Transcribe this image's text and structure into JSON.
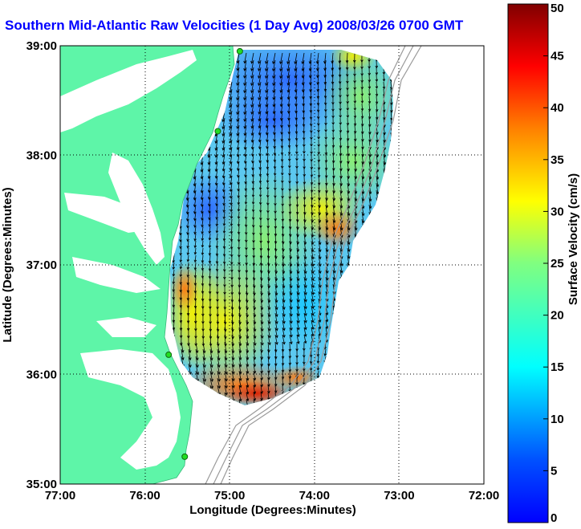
{
  "title": "Southern Mid-Atlantic Raw Velocities (1 Day Avg) 2008/03/26 0700 GMT",
  "map": {
    "xlabel": "Longitude (Degrees:Minutes)",
    "ylabel": "Latitude (Degrees:Minutes)",
    "x_ticks": [
      "77:00",
      "76:00",
      "75:00",
      "74:00",
      "73:00",
      "72:00"
    ],
    "y_ticks": [
      "39:00",
      "38:00",
      "37:00",
      "36:00",
      "35:00"
    ],
    "lon_range": [
      -77,
      -72
    ],
    "lat_range": [
      35,
      39
    ],
    "land_color": "#5ef5a8",
    "water_color": "#ffffff",
    "grid": true
  },
  "colorbar": {
    "label": "Surface Velocity (cm/s)",
    "ticks": [
      "0",
      "5",
      "10",
      "15",
      "20",
      "25",
      "30",
      "35",
      "40",
      "45",
      "50"
    ],
    "range": [
      0,
      50
    ],
    "colormap": "jet"
  },
  "stations": [
    {
      "lon": -74.88,
      "lat": 38.95
    },
    {
      "lon": -75.14,
      "lat": 38.22
    },
    {
      "lon": -75.72,
      "lat": 36.18
    },
    {
      "lon": -75.53,
      "lat": 35.25
    }
  ]
}
